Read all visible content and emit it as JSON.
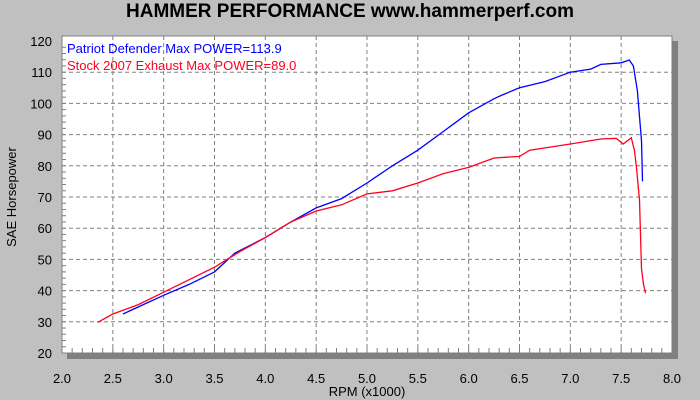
{
  "chart_data": {
    "type": "line",
    "title": "HAMMER PERFORMANCE www.hammerperf.com",
    "xlabel": "RPM (x1000)",
    "ylabel": "SAE Horsepower",
    "xlim": [
      2.0,
      8.0
    ],
    "ylim": [
      20,
      120
    ],
    "xticks": [
      "2.0",
      "2.5",
      "3.0",
      "3.5",
      "4.0",
      "4.5",
      "5.0",
      "5.5",
      "6.0",
      "6.5",
      "7.0",
      "7.5",
      "8.0"
    ],
    "yticks": [
      "20",
      "30",
      "40",
      "50",
      "60",
      "70",
      "80",
      "90",
      "100",
      "110",
      "120"
    ],
    "grid": true,
    "legend_position": "top-left",
    "series": [
      {
        "name": "Patriot Defender  Max POWER=113.9",
        "color": "#0000ff",
        "x": [
          2.6,
          2.8,
          3.0,
          3.25,
          3.5,
          3.7,
          4.0,
          4.25,
          4.5,
          4.75,
          5.0,
          5.25,
          5.5,
          5.75,
          6.0,
          6.25,
          6.33,
          6.5,
          6.75,
          7.0,
          7.2,
          7.3,
          7.5,
          7.58,
          7.62,
          7.66,
          7.7,
          7.71
        ],
        "y": [
          32.5,
          35.5,
          38.5,
          42,
          46,
          52,
          57,
          62,
          66.5,
          69.5,
          74.5,
          80,
          85,
          91,
          97,
          101.5,
          102.7,
          105,
          107,
          110,
          111,
          112.5,
          113,
          113.9,
          112,
          104,
          88,
          75
        ]
      },
      {
        "name": "Stock 2007 Exhaust  Max POWER=89.0",
        "color": "#ff0020",
        "x": [
          2.35,
          2.5,
          2.75,
          3.0,
          3.25,
          3.5,
          3.75,
          4.0,
          4.25,
          4.5,
          4.75,
          5.0,
          5.25,
          5.5,
          5.75,
          6.0,
          6.25,
          6.5,
          6.6,
          6.8,
          7.0,
          7.3,
          7.45,
          7.52,
          7.6,
          7.63,
          7.65,
          7.68,
          7.7,
          7.72,
          7.74
        ],
        "y": [
          29.8,
          32.5,
          35.5,
          39.5,
          43.5,
          47.5,
          52.5,
          57,
          62,
          65.5,
          67.5,
          71,
          72,
          74.5,
          77.5,
          79.5,
          82.5,
          83,
          85,
          86,
          87,
          88.6,
          88.8,
          87,
          89.0,
          85,
          79.7,
          69,
          47,
          42,
          39.2
        ]
      }
    ]
  }
}
